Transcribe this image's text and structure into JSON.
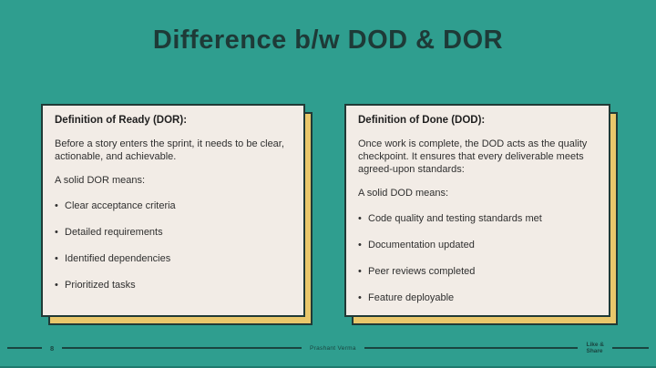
{
  "slide": {
    "title": "Difference b/w DOD & DOR",
    "bullet_char": "•",
    "cards": [
      {
        "heading": "Definition of Ready (DOR):",
        "intro": "Before a story enters the sprint, it needs to be clear, actionable, and achievable.",
        "subheading": "A solid DOR means:",
        "bullets": [
          "Clear acceptance criteria",
          "Detailed requirements",
          "Identified dependencies",
          "Prioritized tasks"
        ]
      },
      {
        "heading": "Definition of Done (DOD):",
        "intro": "Once work is complete, the DOD acts as the quality checkpoint. It ensures that every deliverable meets agreed-upon standards:",
        "subheading": "A solid DOD means:",
        "bullets": [
          "Code quality and testing standards met",
          "Documentation updated",
          "Peer reviews completed",
          "Feature deployable"
        ]
      }
    ],
    "footer": {
      "page_number": "8",
      "author": "Prashant Verma",
      "cta_line1": "Like &",
      "cta_line2": "Share"
    },
    "colors": {
      "background": "#2f9e8f",
      "card_background": "#f2ece6",
      "card_border": "#203a36",
      "card_shadow": "#e9c76b",
      "title_text": "#1e3a37",
      "body_text": "#2f2f2f",
      "footer_text": "#1a4540"
    }
  }
}
